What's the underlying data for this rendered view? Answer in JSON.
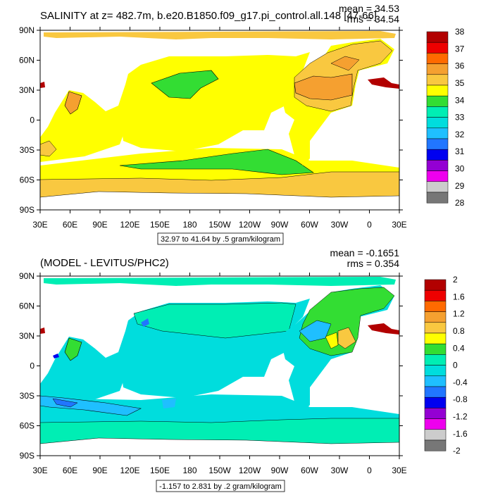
{
  "panels": [
    {
      "title": "SALINITY at z= 482.7m, b.e20.B1850.f09_g17.pi_control.all.148 [47-66]",
      "mean": "mean = 34.53",
      "rms": "rms = 34.54",
      "caption": "32.97 to 41.64 by .5 gram/kilogram",
      "colorbar": {
        "labels": [
          "38",
          "37",
          "36",
          "35",
          "34",
          "33",
          "32",
          "31",
          "30",
          "29",
          "28"
        ],
        "colors": [
          "#b20000",
          "#ee0000",
          "#ff6a00",
          "#f5a030",
          "#f9c840",
          "#ffff00",
          "#33dd33",
          "#00eeb4",
          "#00dddd",
          "#1fbfff",
          "#2176ff",
          "#0000f0",
          "#9400d3",
          "#ee00ee",
          "#cccccc",
          "#777777"
        ]
      }
    },
    {
      "title": "(MODEL - LEVITUS/PHC2)",
      "mean": "mean = -0.1651",
      "rms": "rms = 0.354",
      "caption": "-1.157 to 2.831 by .2 gram/kilogram",
      "colorbar": {
        "labels": [
          "2",
          "1.6",
          "1.2",
          "0.8",
          "0.4",
          "0",
          "-0.4",
          "-0.8",
          "-1.2",
          "-1.6",
          "-2"
        ],
        "colors": [
          "#b20000",
          "#ee0000",
          "#ff6a00",
          "#f5a030",
          "#f9c840",
          "#ffff00",
          "#33dd33",
          "#00eeb4",
          "#00dddd",
          "#1fbfff",
          "#2176ff",
          "#0000f0",
          "#9400d3",
          "#ee00ee",
          "#cccccc",
          "#777777"
        ]
      }
    }
  ],
  "axes": {
    "lat_labels": [
      "90N",
      "60N",
      "30N",
      "0",
      "30S",
      "60S",
      "90S"
    ],
    "lon_labels": [
      "30E",
      "60E",
      "90E",
      "120E",
      "150E",
      "180",
      "150W",
      "120W",
      "90W",
      "60W",
      "30W",
      "0",
      "30E"
    ]
  }
}
